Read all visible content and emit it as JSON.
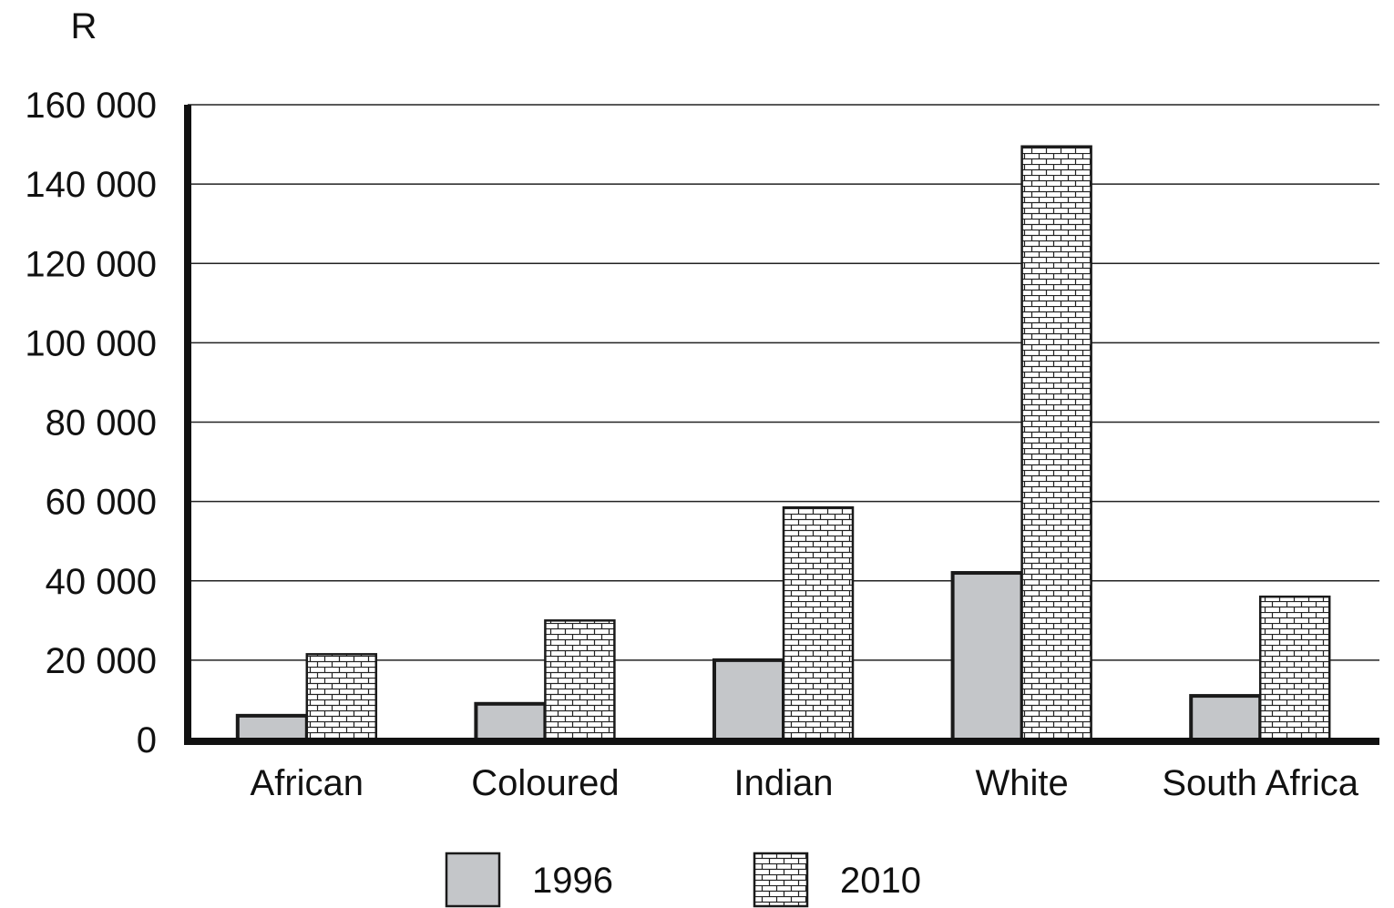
{
  "chart_data": {
    "type": "bar",
    "title": "",
    "xlabel": "",
    "ylabel": "R",
    "ylim": [
      0,
      160000
    ],
    "yticks": [
      0,
      20000,
      40000,
      60000,
      80000,
      100000,
      120000,
      140000,
      160000
    ],
    "ytick_labels": [
      "0",
      "20 000",
      "40 000",
      "60 000",
      "80 000",
      "100 000",
      "120 000",
      "140 000",
      "160 000"
    ],
    "grid": true,
    "legend": "bottom",
    "categories": [
      "African",
      "Coloured",
      "Indian",
      "White",
      "South Africa"
    ],
    "series": [
      {
        "name": "1996",
        "pattern": "solid-grey",
        "color": "#c4c6c9",
        "values": [
          6000,
          9000,
          20000,
          42000,
          11000
        ]
      },
      {
        "name": "2010",
        "pattern": "brick",
        "color": "#ffffff",
        "values": [
          21500,
          30000,
          58500,
          149500,
          36000
        ]
      }
    ]
  }
}
